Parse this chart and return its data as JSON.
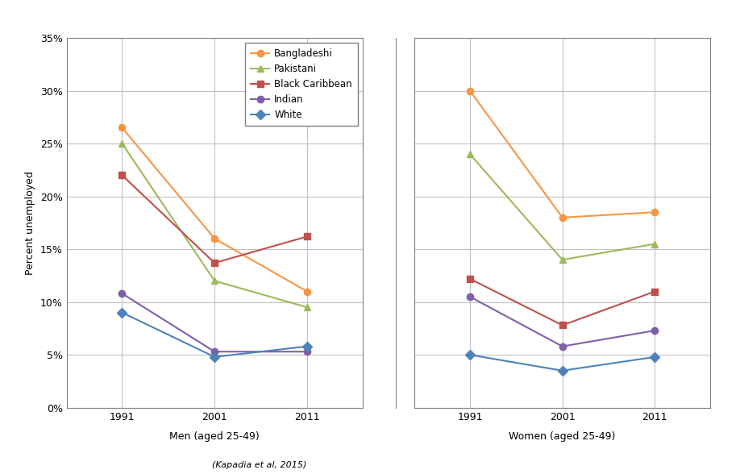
{
  "years": [
    1991,
    2001,
    2011
  ],
  "men": {
    "Bangladeshi": [
      26.5,
      16.0,
      11.0
    ],
    "Pakistani": [
      25.0,
      12.0,
      9.5
    ],
    "Black Caribbean": [
      22.0,
      13.7,
      16.2
    ],
    "Indian": [
      10.8,
      5.3,
      5.3
    ],
    "White": [
      9.0,
      4.8,
      5.8
    ]
  },
  "women": {
    "Bangladeshi": [
      30.0,
      18.0,
      18.5
    ],
    "Pakistani": [
      24.0,
      14.0,
      15.5
    ],
    "Black Caribbean": [
      12.2,
      7.8,
      11.0
    ],
    "Indian": [
      10.5,
      5.8,
      7.3
    ],
    "White": [
      5.0,
      3.5,
      4.8
    ]
  },
  "colors": {
    "Bangladeshi": "#F79646",
    "Pakistani": "#9BBB59",
    "Black Caribbean": "#C0504D",
    "Indian": "#7F5FA8",
    "White": "#4F81BD"
  },
  "markers": {
    "Bangladeshi": "o",
    "Pakistani": "^",
    "Black Caribbean": "s",
    "Indian": "o",
    "White": "D"
  },
  "ylim": [
    0,
    35
  ],
  "yticks": [
    0,
    5,
    10,
    15,
    20,
    25,
    30,
    35
  ],
  "ytick_labels": [
    "0%",
    "5%",
    "10%",
    "15%",
    "20%",
    "25%",
    "30%",
    "35%"
  ],
  "ylabel": "Percent unemployed",
  "men_label": "Men (aged 25-49)",
  "women_label": "Women (aged 25-49)",
  "citation": "(Kapadia et al, 2015)"
}
